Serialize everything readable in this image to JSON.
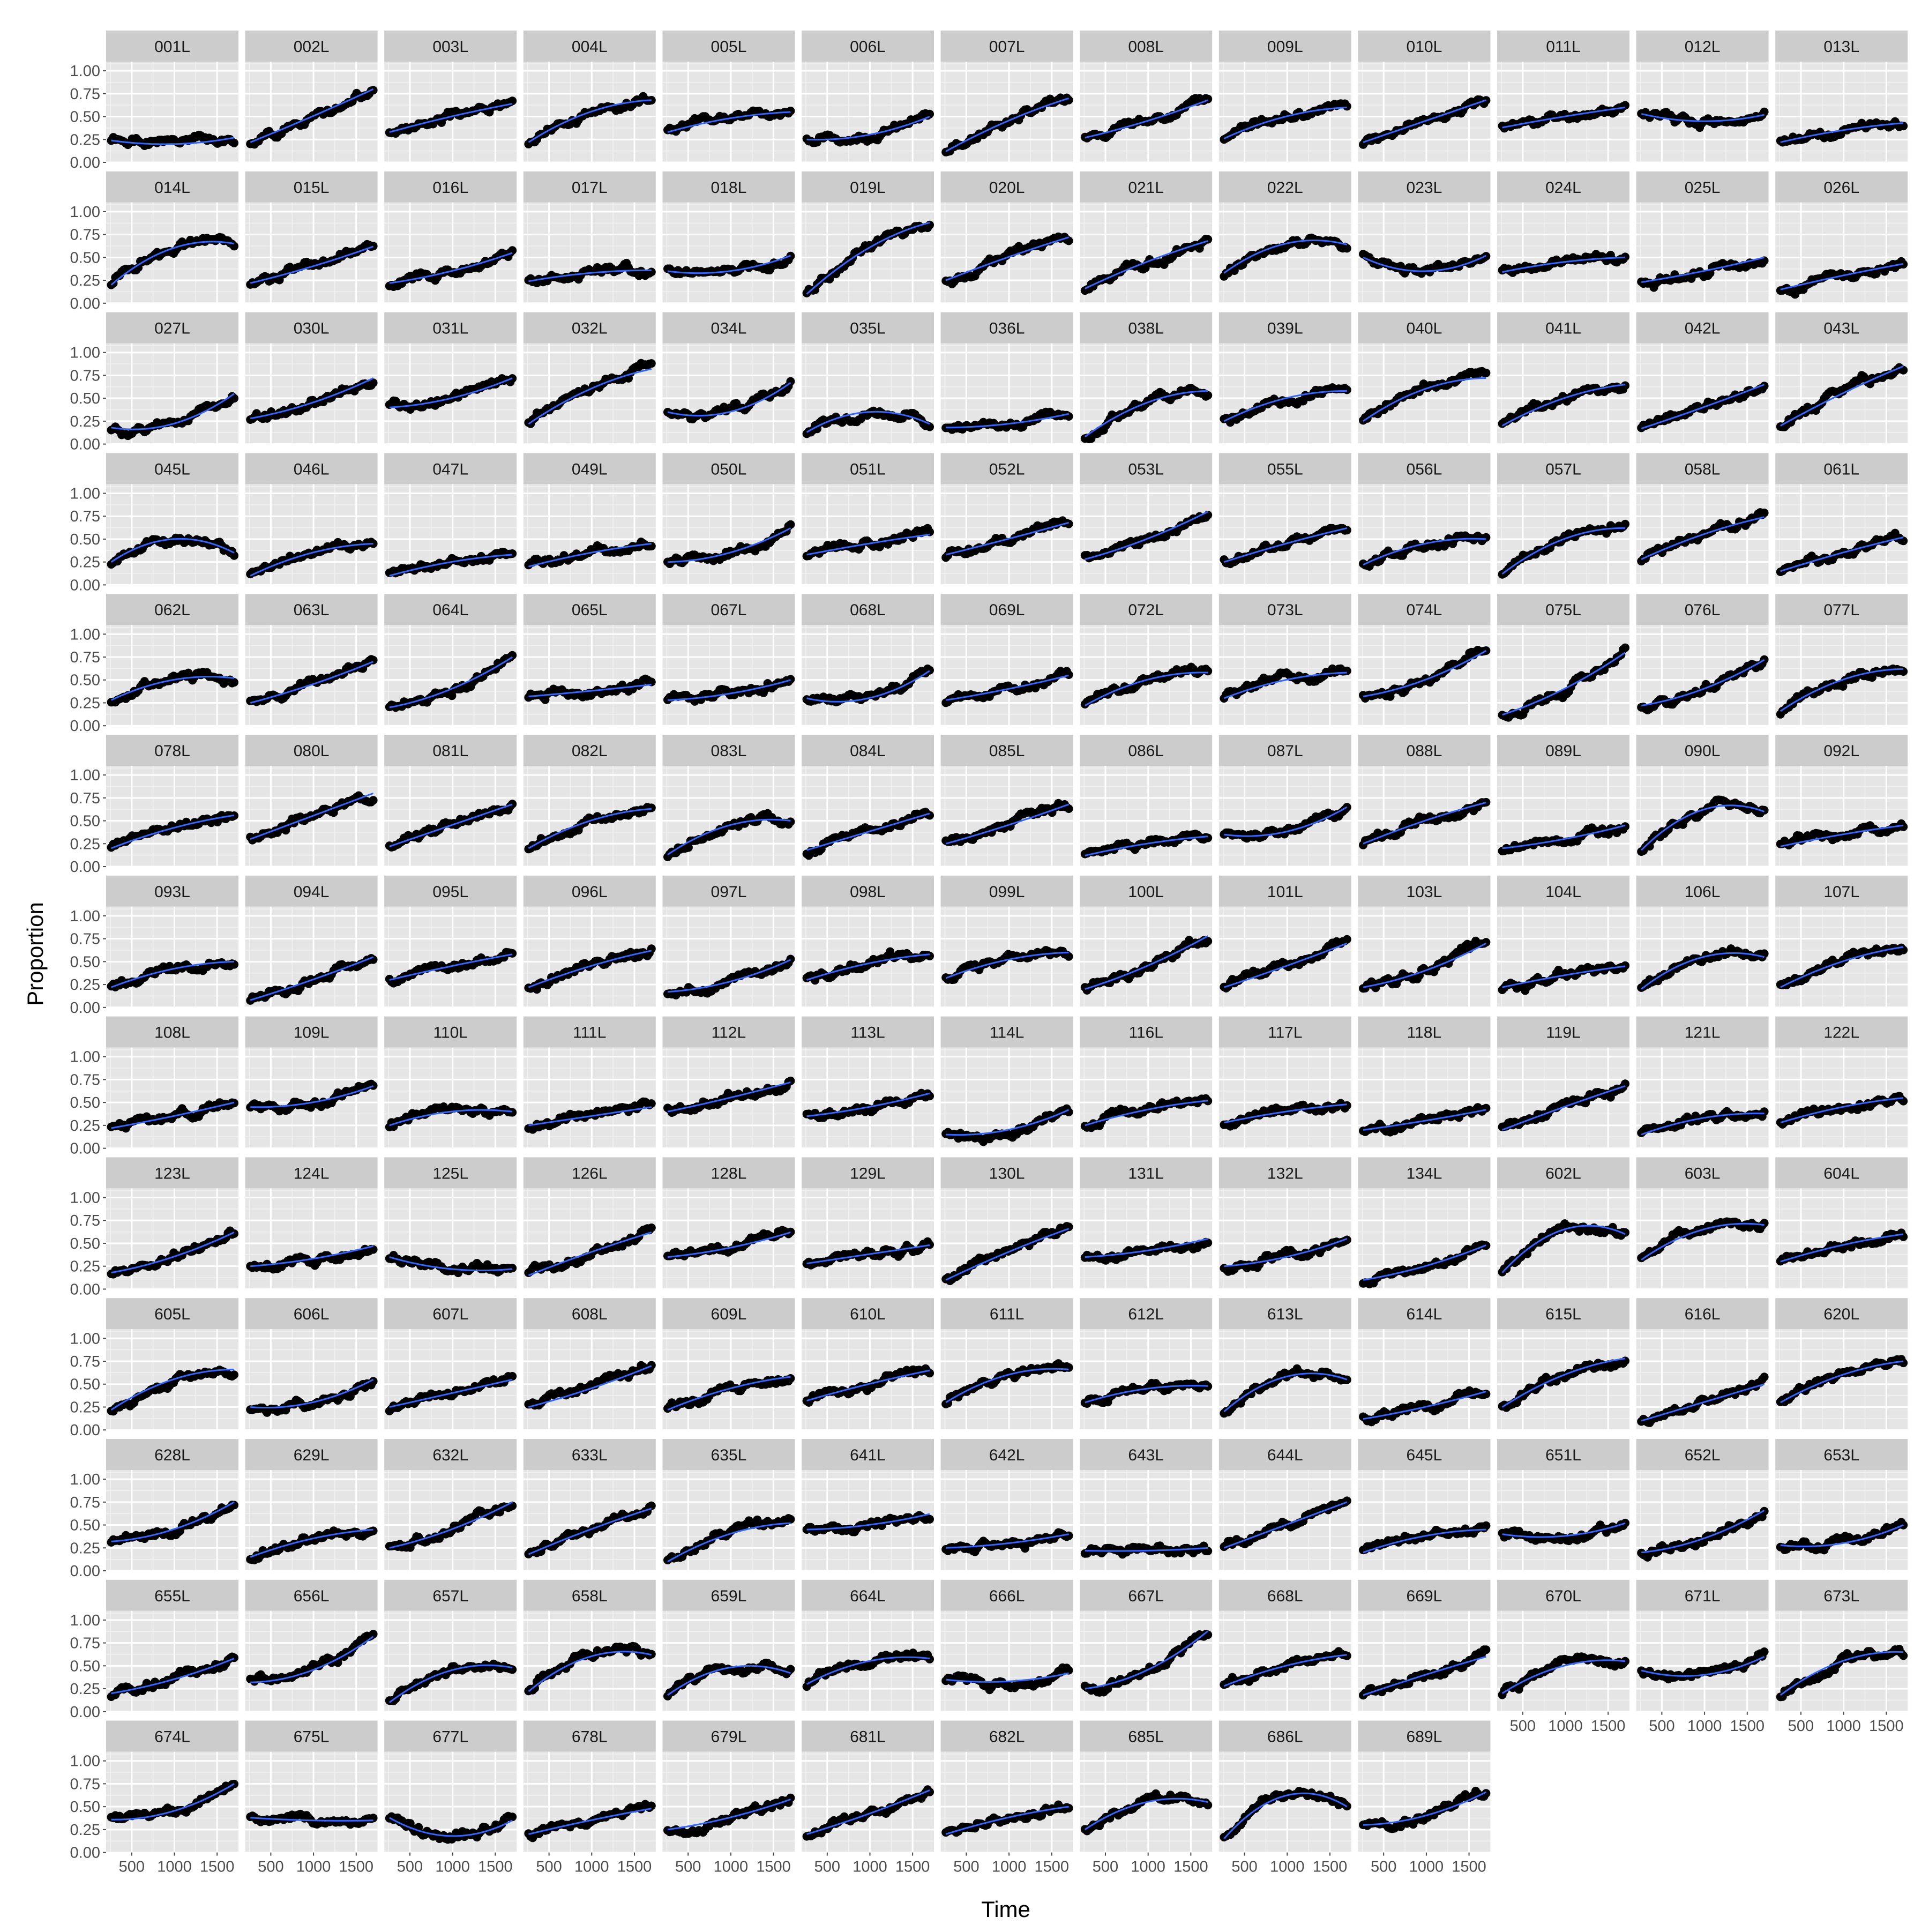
{
  "chart_data": {
    "type": "scatter",
    "description_free": true,
    "xlabel": "Time",
    "ylabel": "Proportion",
    "x_ticks": [
      500,
      1000,
      1500
    ],
    "x_tick_labels": [
      "500",
      "1000",
      "1500"
    ],
    "y_ticks": [
      0,
      0.25,
      0.5,
      0.75,
      1.0
    ],
    "y_tick_labels": [
      "0.00",
      "0.25",
      "0.50",
      "0.75",
      "1.00"
    ],
    "xlim": [
      200,
      1750
    ],
    "ylim": [
      0,
      1.1
    ],
    "grid": true,
    "columns": 13,
    "smooth_color": "#3366ff",
    "point_color": "#000000",
    "panel_bg": "#e5e5e5",
    "strip_bg": "#cccccc",
    "panels": [
      {
        "id": "001L",
        "start": 0.24,
        "end": 0.27,
        "mid": 0.2
      },
      {
        "id": "002L",
        "start": 0.22,
        "end": 0.8,
        "mid": 0.5
      },
      {
        "id": "003L",
        "start": 0.33,
        "end": 0.64,
        "mid": 0.5
      },
      {
        "id": "004L",
        "start": 0.22,
        "end": 0.68,
        "mid": 0.55
      },
      {
        "id": "005L",
        "start": 0.33,
        "end": 0.55,
        "mid": 0.48
      },
      {
        "id": "006L",
        "start": 0.25,
        "end": 0.5,
        "mid": 0.3
      },
      {
        "id": "007L",
        "start": 0.12,
        "end": 0.7,
        "mid": 0.45
      },
      {
        "id": "008L",
        "start": 0.27,
        "end": 0.68,
        "mid": 0.45
      },
      {
        "id": "009L",
        "start": 0.26,
        "end": 0.6,
        "mid": 0.5
      },
      {
        "id": "010L",
        "start": 0.22,
        "end": 0.68,
        "mid": 0.45
      },
      {
        "id": "011L",
        "start": 0.38,
        "end": 0.6,
        "mid": 0.5
      },
      {
        "id": "012L",
        "start": 0.53,
        "end": 0.52,
        "mid": 0.45
      },
      {
        "id": "013L",
        "start": 0.22,
        "end": 0.43,
        "mid": 0.35
      },
      {
        "id": "014L",
        "start": 0.2,
        "end": 0.65,
        "mid": 0.6
      },
      {
        "id": "015L",
        "start": 0.22,
        "end": 0.62,
        "mid": 0.4
      },
      {
        "id": "016L",
        "start": 0.22,
        "end": 0.55,
        "mid": 0.35
      },
      {
        "id": "017L",
        "start": 0.24,
        "end": 0.36,
        "mid": 0.33
      },
      {
        "id": "018L",
        "start": 0.35,
        "end": 0.52,
        "mid": 0.35
      },
      {
        "id": "019L",
        "start": 0.1,
        "end": 0.88,
        "mid": 0.6
      },
      {
        "id": "020L",
        "start": 0.25,
        "end": 0.72,
        "mid": 0.5
      },
      {
        "id": "021L",
        "start": 0.16,
        "end": 0.68,
        "mid": 0.45
      },
      {
        "id": "022L",
        "start": 0.33,
        "end": 0.64,
        "mid": 0.65
      },
      {
        "id": "023L",
        "start": 0.5,
        "end": 0.52,
        "mid": 0.35
      },
      {
        "id": "024L",
        "start": 0.34,
        "end": 0.5,
        "mid": 0.45
      },
      {
        "id": "025L",
        "start": 0.23,
        "end": 0.5,
        "mid": 0.35
      },
      {
        "id": "026L",
        "start": 0.15,
        "end": 0.43,
        "mid": 0.3
      },
      {
        "id": "027L",
        "start": 0.18,
        "end": 0.55,
        "mid": 0.22
      },
      {
        "id": "030L",
        "start": 0.28,
        "end": 0.72,
        "mid": 0.45
      },
      {
        "id": "031L",
        "start": 0.4,
        "end": 0.72,
        "mid": 0.5
      },
      {
        "id": "032L",
        "start": 0.22,
        "end": 0.82,
        "mid": 0.6
      },
      {
        "id": "034L",
        "start": 0.35,
        "end": 0.67,
        "mid": 0.35
      },
      {
        "id": "035L",
        "start": 0.13,
        "end": 0.22,
        "mid": 0.35
      },
      {
        "id": "036L",
        "start": 0.18,
        "end": 0.33,
        "mid": 0.22
      },
      {
        "id": "038L",
        "start": 0.08,
        "end": 0.58,
        "mid": 0.45
      },
      {
        "id": "039L",
        "start": 0.25,
        "end": 0.58,
        "mid": 0.5
      },
      {
        "id": "040L",
        "start": 0.25,
        "end": 0.72,
        "mid": 0.6
      },
      {
        "id": "041L",
        "start": 0.2,
        "end": 0.65,
        "mid": 0.5
      },
      {
        "id": "042L",
        "start": 0.17,
        "end": 0.65,
        "mid": 0.4
      },
      {
        "id": "043L",
        "start": 0.2,
        "end": 0.85,
        "mid": 0.55
      },
      {
        "id": "045L",
        "start": 0.25,
        "end": 0.35,
        "mid": 0.5
      },
      {
        "id": "046L",
        "start": 0.1,
        "end": 0.45,
        "mid": 0.35
      },
      {
        "id": "047L",
        "start": 0.1,
        "end": 0.33,
        "mid": 0.25
      },
      {
        "id": "049L",
        "start": 0.2,
        "end": 0.45,
        "mid": 0.35
      },
      {
        "id": "050L",
        "start": 0.25,
        "end": 0.62,
        "mid": 0.35
      },
      {
        "id": "051L",
        "start": 0.33,
        "end": 0.55,
        "mid": 0.45
      },
      {
        "id": "052L",
        "start": 0.33,
        "end": 0.68,
        "mid": 0.5
      },
      {
        "id": "053L",
        "start": 0.28,
        "end": 0.8,
        "mid": 0.5
      },
      {
        "id": "055L",
        "start": 0.25,
        "end": 0.62,
        "mid": 0.45
      },
      {
        "id": "056L",
        "start": 0.22,
        "end": 0.5,
        "mid": 0.45
      },
      {
        "id": "057L",
        "start": 0.12,
        "end": 0.62,
        "mid": 0.5
      },
      {
        "id": "058L",
        "start": 0.28,
        "end": 0.74,
        "mid": 0.55
      },
      {
        "id": "061L",
        "start": 0.15,
        "end": 0.52,
        "mid": 0.35
      },
      {
        "id": "062L",
        "start": 0.28,
        "end": 0.52,
        "mid": 0.5
      },
      {
        "id": "063L",
        "start": 0.25,
        "end": 0.7,
        "mid": 0.45
      },
      {
        "id": "064L",
        "start": 0.2,
        "end": 0.75,
        "mid": 0.4
      },
      {
        "id": "065L",
        "start": 0.32,
        "end": 0.45,
        "mid": 0.38
      },
      {
        "id": "067L",
        "start": 0.28,
        "end": 0.5,
        "mid": 0.35
      },
      {
        "id": "068L",
        "start": 0.3,
        "end": 0.6,
        "mid": 0.3
      },
      {
        "id": "069L",
        "start": 0.28,
        "end": 0.55,
        "mid": 0.4
      },
      {
        "id": "072L",
        "start": 0.22,
        "end": 0.58,
        "mid": 0.5
      },
      {
        "id": "073L",
        "start": 0.3,
        "end": 0.58,
        "mid": 0.5
      },
      {
        "id": "074L",
        "start": 0.32,
        "end": 0.82,
        "mid": 0.5
      },
      {
        "id": "075L",
        "start": 0.12,
        "end": 0.8,
        "mid": 0.4
      },
      {
        "id": "076L",
        "start": 0.22,
        "end": 0.72,
        "mid": 0.4
      },
      {
        "id": "077L",
        "start": 0.16,
        "end": 0.62,
        "mid": 0.5
      },
      {
        "id": "078L",
        "start": 0.2,
        "end": 0.56,
        "mid": 0.42
      },
      {
        "id": "080L",
        "start": 0.3,
        "end": 0.8,
        "mid": 0.55
      },
      {
        "id": "081L",
        "start": 0.22,
        "end": 0.68,
        "mid": 0.45
      },
      {
        "id": "082L",
        "start": 0.2,
        "end": 0.63,
        "mid": 0.5
      },
      {
        "id": "083L",
        "start": 0.13,
        "end": 0.5,
        "mid": 0.45
      },
      {
        "id": "084L",
        "start": 0.18,
        "end": 0.58,
        "mid": 0.38
      },
      {
        "id": "085L",
        "start": 0.25,
        "end": 0.68,
        "mid": 0.45
      },
      {
        "id": "086L",
        "start": 0.12,
        "end": 0.33,
        "mid": 0.25
      },
      {
        "id": "087L",
        "start": 0.35,
        "end": 0.65,
        "mid": 0.38
      },
      {
        "id": "088L",
        "start": 0.25,
        "end": 0.7,
        "mid": 0.5
      },
      {
        "id": "089L",
        "start": 0.2,
        "end": 0.45,
        "mid": 0.3
      },
      {
        "id": "090L",
        "start": 0.18,
        "end": 0.6,
        "mid": 0.62
      },
      {
        "id": "092L",
        "start": 0.22,
        "end": 0.45,
        "mid": 0.35
      },
      {
        "id": "093L",
        "start": 0.22,
        "end": 0.5,
        "mid": 0.42
      },
      {
        "id": "094L",
        "start": 0.08,
        "end": 0.55,
        "mid": 0.3
      },
      {
        "id": "095L",
        "start": 0.3,
        "end": 0.58,
        "mid": 0.45
      },
      {
        "id": "096L",
        "start": 0.22,
        "end": 0.62,
        "mid": 0.45
      },
      {
        "id": "097L",
        "start": 0.17,
        "end": 0.52,
        "mid": 0.28
      },
      {
        "id": "098L",
        "start": 0.3,
        "end": 0.58,
        "mid": 0.48
      },
      {
        "id": "099L",
        "start": 0.32,
        "end": 0.6,
        "mid": 0.52
      },
      {
        "id": "100L",
        "start": 0.2,
        "end": 0.78,
        "mid": 0.45
      },
      {
        "id": "101L",
        "start": 0.22,
        "end": 0.7,
        "mid": 0.45
      },
      {
        "id": "103L",
        "start": 0.22,
        "end": 0.7,
        "mid": 0.4
      },
      {
        "id": "104L",
        "start": 0.22,
        "end": 0.45,
        "mid": 0.35
      },
      {
        "id": "106L",
        "start": 0.2,
        "end": 0.55,
        "mid": 0.55
      },
      {
        "id": "107L",
        "start": 0.22,
        "end": 0.66,
        "mid": 0.5
      },
      {
        "id": "108L",
        "start": 0.22,
        "end": 0.5,
        "mid": 0.35
      },
      {
        "id": "109L",
        "start": 0.45,
        "end": 0.68,
        "mid": 0.5
      },
      {
        "id": "110L",
        "start": 0.25,
        "end": 0.4,
        "mid": 0.4
      },
      {
        "id": "111L",
        "start": 0.25,
        "end": 0.45,
        "mid": 0.35
      },
      {
        "id": "112L",
        "start": 0.4,
        "end": 0.72,
        "mid": 0.55
      },
      {
        "id": "113L",
        "start": 0.35,
        "end": 0.6,
        "mid": 0.45
      },
      {
        "id": "114L",
        "start": 0.15,
        "end": 0.42,
        "mid": 0.2
      },
      {
        "id": "116L",
        "start": 0.25,
        "end": 0.52,
        "mid": 0.42
      },
      {
        "id": "117L",
        "start": 0.28,
        "end": 0.48,
        "mid": 0.4
      },
      {
        "id": "118L",
        "start": 0.2,
        "end": 0.42,
        "mid": 0.3
      },
      {
        "id": "119L",
        "start": 0.2,
        "end": 0.68,
        "mid": 0.45
      },
      {
        "id": "121L",
        "start": 0.15,
        "end": 0.38,
        "mid": 0.33
      },
      {
        "id": "122L",
        "start": 0.28,
        "end": 0.55,
        "mid": 0.45
      },
      {
        "id": "123L",
        "start": 0.18,
        "end": 0.62,
        "mid": 0.35
      },
      {
        "id": "124L",
        "start": 0.25,
        "end": 0.47,
        "mid": 0.33
      },
      {
        "id": "125L",
        "start": 0.35,
        "end": 0.22,
        "mid": 0.22
      },
      {
        "id": "126L",
        "start": 0.15,
        "end": 0.62,
        "mid": 0.4
      },
      {
        "id": "128L",
        "start": 0.35,
        "end": 0.62,
        "mid": 0.45
      },
      {
        "id": "129L",
        "start": 0.28,
        "end": 0.48,
        "mid": 0.38
      },
      {
        "id": "130L",
        "start": 0.1,
        "end": 0.66,
        "mid": 0.4
      },
      {
        "id": "131L",
        "start": 0.35,
        "end": 0.55,
        "mid": 0.42
      },
      {
        "id": "132L",
        "start": 0.25,
        "end": 0.55,
        "mid": 0.35
      },
      {
        "id": "134L",
        "start": 0.1,
        "end": 0.48,
        "mid": 0.25
      },
      {
        "id": "602L",
        "start": 0.18,
        "end": 0.6,
        "mid": 0.65
      },
      {
        "id": "603L",
        "start": 0.32,
        "end": 0.7,
        "mid": 0.65
      },
      {
        "id": "604L",
        "start": 0.3,
        "end": 0.6,
        "mid": 0.48
      },
      {
        "id": "605L",
        "start": 0.22,
        "end": 0.66,
        "mid": 0.55
      },
      {
        "id": "606L",
        "start": 0.25,
        "end": 0.55,
        "mid": 0.3
      },
      {
        "id": "607L",
        "start": 0.25,
        "end": 0.55,
        "mid": 0.4
      },
      {
        "id": "608L",
        "start": 0.25,
        "end": 0.7,
        "mid": 0.45
      },
      {
        "id": "609L",
        "start": 0.22,
        "end": 0.58,
        "mid": 0.45
      },
      {
        "id": "610L",
        "start": 0.32,
        "end": 0.65,
        "mid": 0.5
      },
      {
        "id": "611L",
        "start": 0.3,
        "end": 0.66,
        "mid": 0.6
      },
      {
        "id": "612L",
        "start": 0.3,
        "end": 0.48,
        "mid": 0.45
      },
      {
        "id": "613L",
        "start": 0.2,
        "end": 0.55,
        "mid": 0.58
      },
      {
        "id": "614L",
        "start": 0.12,
        "end": 0.42,
        "mid": 0.25
      },
      {
        "id": "615L",
        "start": 0.25,
        "end": 0.78,
        "mid": 0.6
      },
      {
        "id": "616L",
        "start": 0.1,
        "end": 0.5,
        "mid": 0.3
      },
      {
        "id": "620L",
        "start": 0.3,
        "end": 0.75,
        "mid": 0.6
      },
      {
        "id": "628L",
        "start": 0.32,
        "end": 0.75,
        "mid": 0.45
      },
      {
        "id": "629L",
        "start": 0.15,
        "end": 0.45,
        "mid": 0.35
      },
      {
        "id": "632L",
        "start": 0.25,
        "end": 0.75,
        "mid": 0.45
      },
      {
        "id": "633L",
        "start": 0.18,
        "end": 0.68,
        "mid": 0.45
      },
      {
        "id": "635L",
        "start": 0.1,
        "end": 0.52,
        "mid": 0.4
      },
      {
        "id": "641L",
        "start": 0.45,
        "end": 0.62,
        "mid": 0.5
      },
      {
        "id": "642L",
        "start": 0.25,
        "end": 0.4,
        "mid": 0.3
      },
      {
        "id": "643L",
        "start": 0.22,
        "end": 0.25,
        "mid": 0.22
      },
      {
        "id": "644L",
        "start": 0.25,
        "end": 0.75,
        "mid": 0.5
      },
      {
        "id": "645L",
        "start": 0.2,
        "end": 0.45,
        "mid": 0.38
      },
      {
        "id": "651L",
        "start": 0.4,
        "end": 0.52,
        "mid": 0.38
      },
      {
        "id": "652L",
        "start": 0.2,
        "end": 0.66,
        "mid": 0.35
      },
      {
        "id": "653L",
        "start": 0.28,
        "end": 0.5,
        "mid": 0.3
      },
      {
        "id": "655L",
        "start": 0.2,
        "end": 0.58,
        "mid": 0.35
      },
      {
        "id": "656L",
        "start": 0.32,
        "end": 0.82,
        "mid": 0.45
      },
      {
        "id": "657L",
        "start": 0.1,
        "end": 0.48,
        "mid": 0.45
      },
      {
        "id": "658L",
        "start": 0.22,
        "end": 0.62,
        "mid": 0.6
      },
      {
        "id": "659L",
        "start": 0.18,
        "end": 0.42,
        "mid": 0.48
      },
      {
        "id": "664L",
        "start": 0.3,
        "end": 0.58,
        "mid": 0.55
      },
      {
        "id": "666L",
        "start": 0.35,
        "end": 0.42,
        "mid": 0.33
      },
      {
        "id": "667L",
        "start": 0.25,
        "end": 0.88,
        "mid": 0.45
      },
      {
        "id": "668L",
        "start": 0.28,
        "end": 0.62,
        "mid": 0.5
      },
      {
        "id": "669L",
        "start": 0.18,
        "end": 0.6,
        "mid": 0.4
      },
      {
        "id": "670L",
        "start": 0.2,
        "end": 0.55,
        "mid": 0.5
      },
      {
        "id": "671L",
        "start": 0.45,
        "end": 0.6,
        "mid": 0.4
      },
      {
        "id": "673L",
        "start": 0.18,
        "end": 0.65,
        "mid": 0.55
      },
      {
        "id": "674L",
        "start": 0.36,
        "end": 0.75,
        "mid": 0.45
      },
      {
        "id": "675L",
        "start": 0.38,
        "end": 0.35,
        "mid": 0.35
      },
      {
        "id": "677L",
        "start": 0.38,
        "end": 0.35,
        "mid": 0.18
      },
      {
        "id": "678L",
        "start": 0.2,
        "end": 0.48,
        "mid": 0.35
      },
      {
        "id": "679L",
        "start": 0.25,
        "end": 0.58,
        "mid": 0.38
      },
      {
        "id": "681L",
        "start": 0.2,
        "end": 0.68,
        "mid": 0.42
      },
      {
        "id": "682L",
        "start": 0.2,
        "end": 0.5,
        "mid": 0.38
      },
      {
        "id": "685L",
        "start": 0.25,
        "end": 0.55,
        "mid": 0.55
      },
      {
        "id": "686L",
        "start": 0.15,
        "end": 0.5,
        "mid": 0.62
      },
      {
        "id": "689L",
        "start": 0.3,
        "end": 0.66,
        "mid": 0.4
      }
    ]
  }
}
